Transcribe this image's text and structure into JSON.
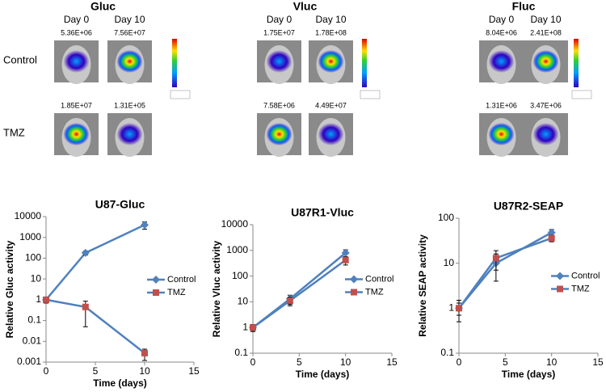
{
  "imaging": {
    "row_labels": [
      "Control",
      "TMZ"
    ],
    "panels": [
      {
        "title": "Gluc",
        "columns": [
          "Day 0",
          "Day 10"
        ],
        "values": [
          [
            "5.36E+06",
            "7.56E+07"
          ],
          [
            "1.85E+07",
            "1.31E+05"
          ]
        ]
      },
      {
        "title": "Vluc",
        "columns": [
          "Day 0",
          "Day 10"
        ],
        "values": [
          [
            "1.75E+07",
            "1.78E+08"
          ],
          [
            "7.58E+06",
            "4.49E+07"
          ]
        ]
      },
      {
        "title": "Fluc",
        "columns": [
          "Day 0",
          "Day 10"
        ],
        "values": [
          [
            "8.04E+06",
            "2.41E+08"
          ],
          [
            "1.31E+06",
            "3.47E+06"
          ]
        ]
      }
    ]
  },
  "chart_data": [
    {
      "type": "line",
      "title": "U87-Gluc",
      "x_label": "Time (days)",
      "y_label": "Relative Gluc activity",
      "x": [
        0,
        4,
        10
      ],
      "xlim": [
        0,
        15
      ],
      "xticks": [
        0,
        5,
        10,
        15
      ],
      "ylim": [
        0.001,
        10000
      ],
      "yticks": [
        0.001,
        0.01,
        0.1,
        1,
        10,
        100,
        1000,
        10000
      ],
      "log_scale": true,
      "legend": "right",
      "series": [
        {
          "name": "Control",
          "color": "#4f81bd",
          "marker": "diamond",
          "marker_color": "#4f81bd",
          "values": [
            1,
            180,
            4000
          ],
          "errors": [
            0.3,
            40,
            1500
          ]
        },
        {
          "name": "TMZ",
          "color": "#4f81bd",
          "marker": "square",
          "marker_color": "#c0504d",
          "values": [
            1,
            0.45,
            0.0027
          ],
          "errors": [
            0.3,
            0.4,
            0.0015
          ]
        }
      ]
    },
    {
      "type": "line",
      "title": "U87R1-Vluc",
      "x_label": "Time (days)",
      "y_label": "Relative Vluc activity",
      "x": [
        0,
        4,
        10
      ],
      "xlim": [
        0,
        15
      ],
      "xticks": [
        0,
        5,
        10,
        15
      ],
      "ylim": [
        0.1,
        10000
      ],
      "yticks": [
        0.1,
        1,
        10,
        100,
        1000,
        10000
      ],
      "log_scale": true,
      "legend": "right",
      "series": [
        {
          "name": "Control",
          "color": "#4f81bd",
          "marker": "diamond",
          "marker_color": "#4f81bd",
          "values": [
            1,
            13,
            800
          ],
          "errors": [
            0.3,
            5,
            250
          ]
        },
        {
          "name": "TMZ",
          "color": "#4f81bd",
          "marker": "square",
          "marker_color": "#c0504d",
          "values": [
            1,
            11,
            420
          ],
          "errors": [
            0.3,
            4,
            150
          ]
        }
      ]
    },
    {
      "type": "line",
      "title": "U87R2-SEAP",
      "x_label": "Time (days)",
      "y_label": "Relative SEAP activity",
      "x": [
        0,
        4,
        10
      ],
      "xlim": [
        0,
        15
      ],
      "xticks": [
        0,
        5,
        10,
        15
      ],
      "ylim": [
        0.1,
        100
      ],
      "yticks": [
        0.1,
        1,
        10,
        100
      ],
      "log_scale": true,
      "legend": "right",
      "series": [
        {
          "name": "Control",
          "color": "#4f81bd",
          "marker": "diamond",
          "marker_color": "#4f81bd",
          "values": [
            1,
            10,
            48
          ],
          "errors": [
            0.5,
            6,
            8
          ]
        },
        {
          "name": "TMZ",
          "color": "#4f81bd",
          "marker": "square",
          "marker_color": "#c0504d",
          "values": [
            1,
            13,
            36
          ],
          "errors": [
            0.3,
            6,
            6
          ]
        }
      ]
    }
  ]
}
